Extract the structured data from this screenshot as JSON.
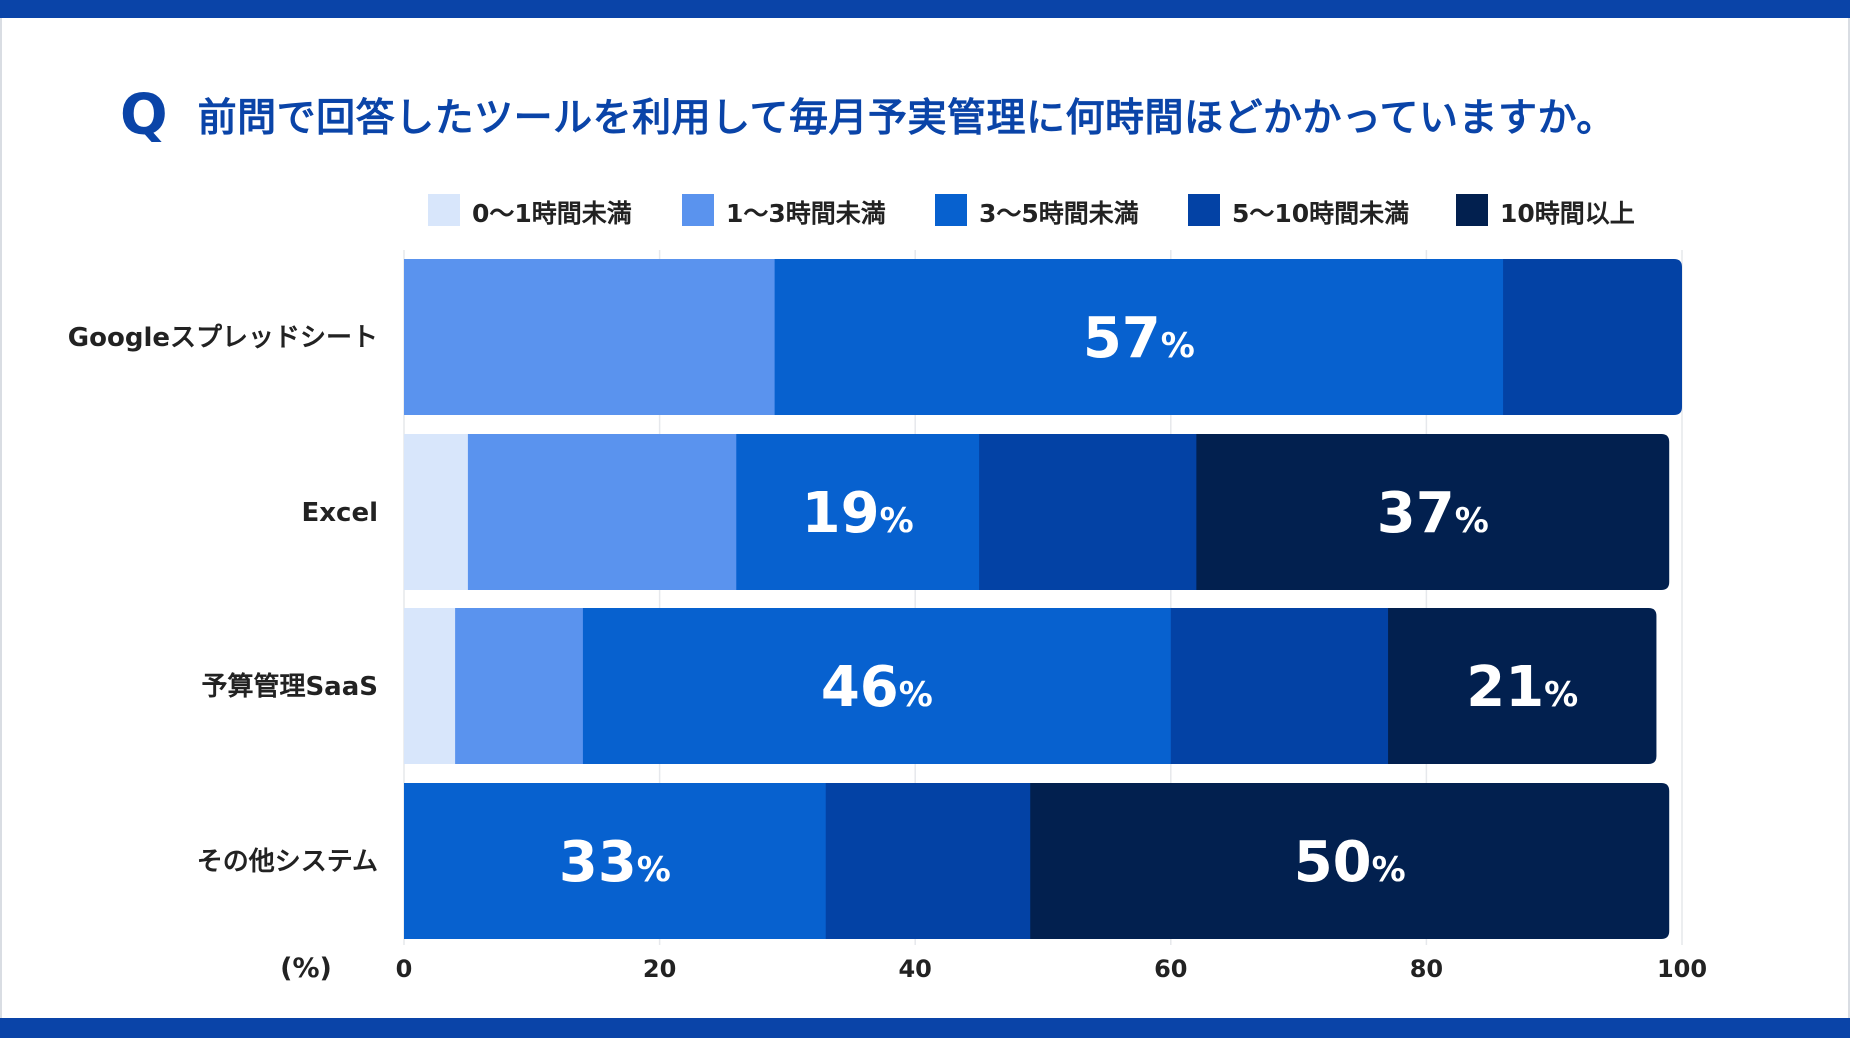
{
  "title": {
    "marker": "Q",
    "text": "前問で回答したツールを利用して毎月予実管理に何時間ほどかかっていますか。"
  },
  "colors": {
    "brand": "#0a44a8",
    "series": [
      "#d8e6fb",
      "#5a93ee",
      "#0761cf",
      "#0342a5",
      "#02204f"
    ]
  },
  "chart_data": {
    "type": "bar",
    "orientation": "horizontal",
    "stacked": true,
    "unit_label": "(%)",
    "xlim": [
      0,
      100
    ],
    "x_ticks": [
      "0",
      "20",
      "40",
      "60",
      "80",
      "100"
    ],
    "grid": true,
    "legend_position": "top",
    "categories": [
      "Googleスプレッドシート",
      "Excel",
      "予算管理SaaS",
      "その他システム"
    ],
    "series": [
      {
        "name": "0〜1時間未満",
        "values": [
          0,
          5,
          4,
          0
        ]
      },
      {
        "name": "1〜3時間未満",
        "values": [
          29,
          21,
          10,
          0
        ]
      },
      {
        "name": "3〜5時間未満",
        "values": [
          57,
          19,
          46,
          33
        ]
      },
      {
        "name": "5〜10時間未満",
        "values": [
          14,
          17,
          17,
          16
        ]
      },
      {
        "name": "10時間以上",
        "values": [
          0,
          37,
          21,
          50
        ]
      }
    ],
    "data_labels": [
      {
        "category": 0,
        "series": 2,
        "number": "57",
        "suffix": "%"
      },
      {
        "category": 1,
        "series": 2,
        "number": "19",
        "suffix": "%"
      },
      {
        "category": 1,
        "series": 4,
        "number": "37",
        "suffix": "%"
      },
      {
        "category": 2,
        "series": 2,
        "number": "46",
        "suffix": "%"
      },
      {
        "category": 2,
        "series": 4,
        "number": "21",
        "suffix": "%"
      },
      {
        "category": 3,
        "series": 2,
        "number": "33",
        "suffix": "%"
      },
      {
        "category": 3,
        "series": 4,
        "number": "50",
        "suffix": "%"
      }
    ]
  }
}
